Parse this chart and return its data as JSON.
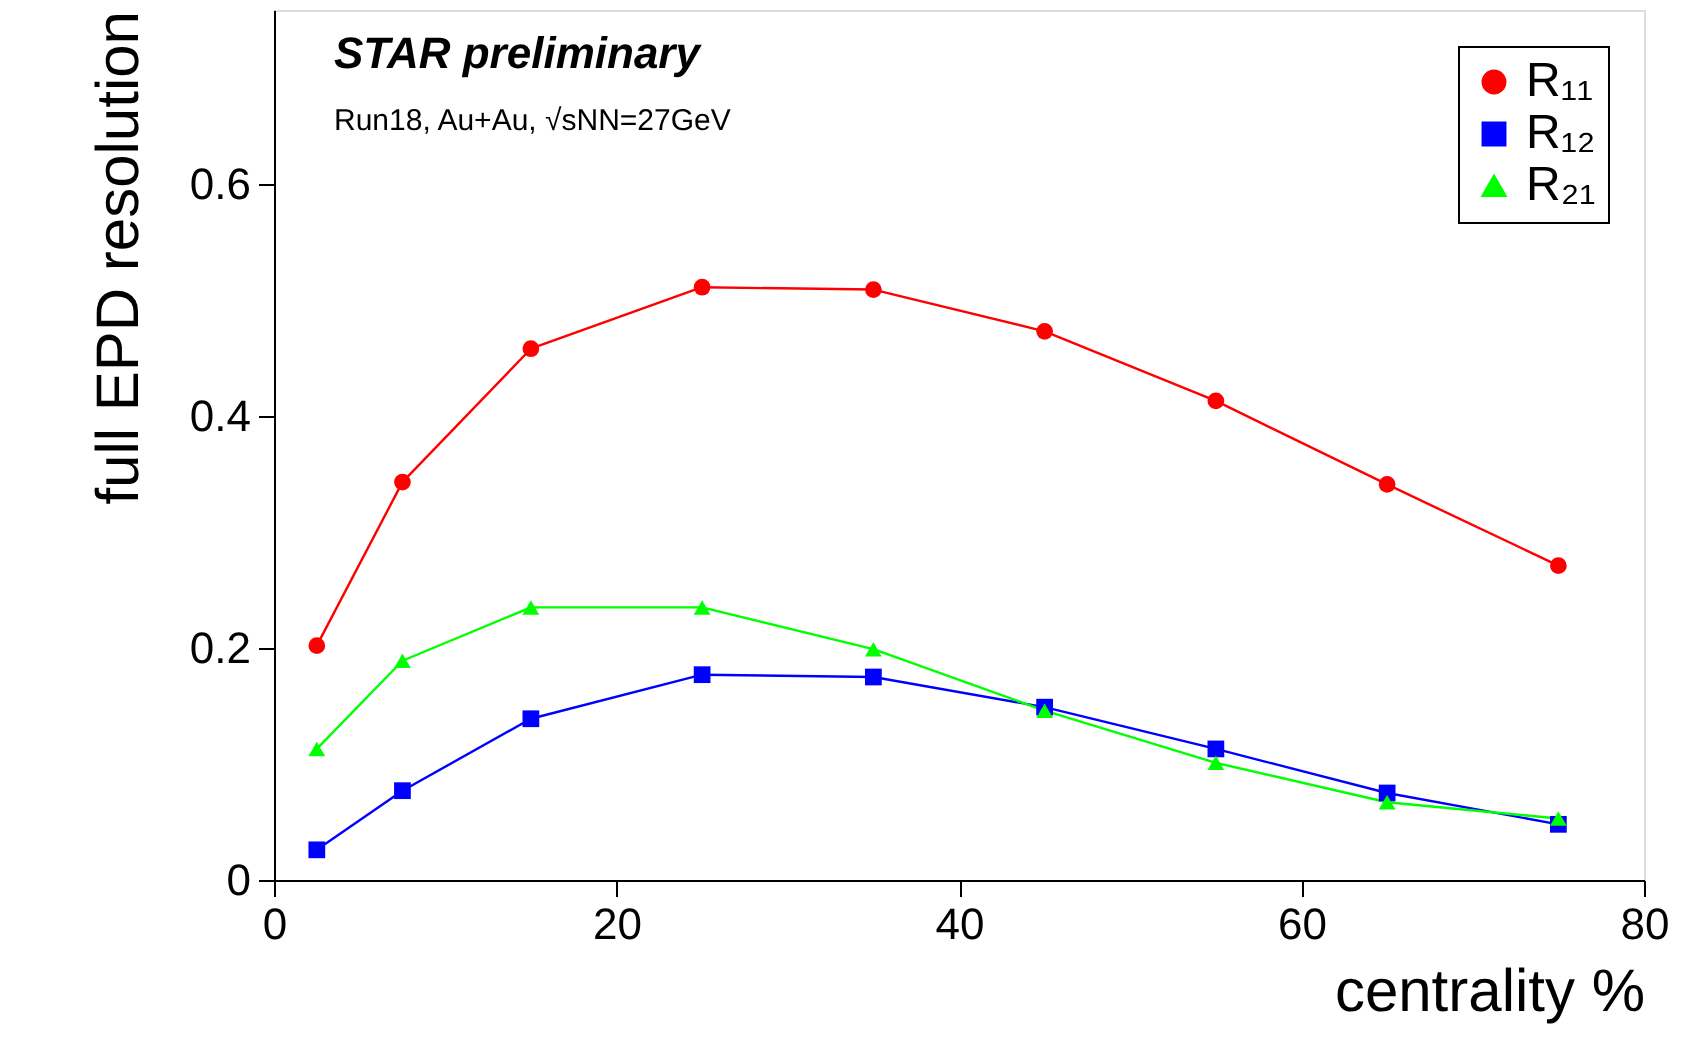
{
  "chart_data": {
    "type": "line",
    "xlabel": "centrality %",
    "ylabel": "full EPD resolution",
    "annotations": [
      "STAR preliminary",
      "Run18, Au+Au, √sNN=27GeV"
    ],
    "x": [
      2.5,
      7.5,
      15,
      25,
      35,
      45,
      55,
      65,
      75
    ],
    "series": [
      {
        "name": "R₁₁",
        "color": "#ff0000",
        "marker": "circle",
        "values": [
          0.202,
          0.343,
          0.458,
          0.511,
          0.509,
          0.473,
          0.413,
          0.341,
          0.271
        ]
      },
      {
        "name": "R₁₂",
        "color": "#0000ff",
        "marker": "square",
        "values": [
          0.026,
          0.077,
          0.139,
          0.177,
          0.175,
          0.149,
          0.113,
          0.075,
          0.048
        ]
      },
      {
        "name": "R₂₁",
        "color": "#00ff00",
        "marker": "triangle",
        "values": [
          0.113,
          0.189,
          0.235,
          0.235,
          0.199,
          0.146,
          0.101,
          0.067,
          0.053
        ]
      }
    ],
    "xlim": [
      0,
      80
    ],
    "ylim": [
      0,
      0.75
    ],
    "xticks": [
      0,
      20,
      40,
      60,
      80
    ],
    "yticks": [
      0,
      0.2,
      0.4,
      0.6
    ],
    "legend": "top right",
    "grid": false
  }
}
